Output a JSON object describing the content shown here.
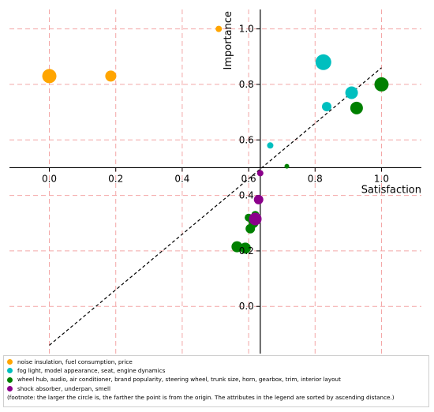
{
  "chart_data": {
    "type": "scatter",
    "xlabel": "Satisfaction",
    "ylabel": "Importance",
    "xlim": [
      -0.12,
      1.12
    ],
    "ylim": [
      -0.17,
      1.07
    ],
    "x_ticks": [
      "0.0",
      "0.2",
      "0.4",
      "0.6",
      "0.8",
      "1.0"
    ],
    "y_ticks": [
      "0.0",
      "0.2",
      "0.4",
      "0.6",
      "0.8",
      "1.0"
    ],
    "grid": true,
    "legend_position": "bottom",
    "series": [
      {
        "name": "noise insulation, fuel consumption, price",
        "color": "#FFA500",
        "points": [
          {
            "x": 0.0,
            "y": 0.83,
            "size": 9
          },
          {
            "x": 0.185,
            "y": 0.83,
            "size": 7
          },
          {
            "x": 0.51,
            "y": 1.0,
            "size": 4
          }
        ]
      },
      {
        "name": "fog light, model appearance, seat, engine dynamics",
        "color": "#00BFBF",
        "points": [
          {
            "x": 0.825,
            "y": 0.88,
            "size": 10
          },
          {
            "x": 0.91,
            "y": 0.77,
            "size": 8
          },
          {
            "x": 0.835,
            "y": 0.72,
            "size": 6
          },
          {
            "x": 0.665,
            "y": 0.58,
            "size": 4
          }
        ]
      },
      {
        "name": "wheel hub, audio, air conditioner, brand popularity, steering wheel, trunk size, horn, gearbox, trim, interior layout",
        "color": "#008000",
        "points": [
          {
            "x": 1.0,
            "y": 0.8,
            "size": 9
          },
          {
            "x": 0.925,
            "y": 0.715,
            "size": 8
          },
          {
            "x": 0.715,
            "y": 0.505,
            "size": 3
          },
          {
            "x": 0.62,
            "y": 0.33,
            "size": 5
          },
          {
            "x": 0.615,
            "y": 0.3,
            "size": 6
          },
          {
            "x": 0.605,
            "y": 0.28,
            "size": 6
          },
          {
            "x": 0.59,
            "y": 0.21,
            "size": 7
          },
          {
            "x": 0.565,
            "y": 0.215,
            "size": 7
          },
          {
            "x": 0.615,
            "y": 0.31,
            "size": 7
          },
          {
            "x": 0.6,
            "y": 0.32,
            "size": 5
          }
        ]
      },
      {
        "name": "shock absorber, underpan, smell",
        "color": "#8B008B",
        "points": [
          {
            "x": 0.635,
            "y": 0.48,
            "size": 4
          },
          {
            "x": 0.63,
            "y": 0.385,
            "size": 6
          },
          {
            "x": 0.62,
            "y": 0.315,
            "size": 8
          }
        ]
      }
    ],
    "footnote": "(footnote: the larger the circle is, the farther the point is from the origin. The attributes in the legend are sorted by ascending distance.)"
  }
}
